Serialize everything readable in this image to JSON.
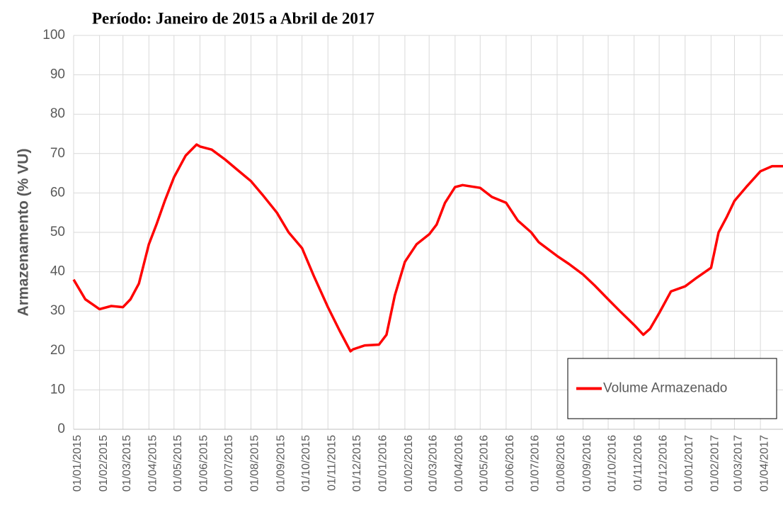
{
  "chart_data": {
    "type": "line",
    "title": "Período: Janeiro de 2015 a Abril de 2017",
    "y_label": "Armazenamento (% VU)",
    "legend": "lower right",
    "grid": true,
    "ylim": [
      0,
      100
    ],
    "yticks": [
      0,
      10,
      20,
      30,
      40,
      50,
      60,
      70,
      80,
      90,
      100
    ],
    "xlim": [
      "01/01/2015",
      "28/04/2017"
    ],
    "xticks": [
      "01/01/2015",
      "01/02/2015",
      "01/03/2015",
      "01/04/2015",
      "01/05/2015",
      "01/06/2015",
      "01/07/2015",
      "01/08/2015",
      "01/09/2015",
      "01/10/2015",
      "01/11/2015",
      "01/12/2015",
      "01/01/2016",
      "01/02/2016",
      "01/03/2016",
      "01/04/2016",
      "01/05/2016",
      "01/06/2016",
      "01/07/2016",
      "01/08/2016",
      "01/09/2016",
      "01/10/2016",
      "01/11/2016",
      "01/12/2016",
      "01/01/2017",
      "01/02/2017",
      "01/03/2017",
      "01/04/2017"
    ],
    "x": [
      "01/01/2015",
      "15/01/2015",
      "01/02/2015",
      "15/02/2015",
      "01/03/2015",
      "10/03/2015",
      "20/03/2015",
      "01/04/2015",
      "10/04/2015",
      "20/04/2015",
      "01/05/2015",
      "15/05/2015",
      "28/05/2015",
      "01/06/2015",
      "15/06/2015",
      "01/07/2015",
      "15/07/2015",
      "01/08/2015",
      "15/08/2015",
      "01/09/2015",
      "15/09/2015",
      "01/10/2015",
      "15/10/2015",
      "01/11/2015",
      "15/11/2015",
      "28/11/2015",
      "01/12/2015",
      "15/12/2015",
      "01/01/2016",
      "10/01/2016",
      "20/01/2016",
      "01/02/2016",
      "15/02/2016",
      "01/03/2016",
      "10/03/2016",
      "20/03/2016",
      "01/04/2016",
      "10/04/2016",
      "01/05/2016",
      "15/05/2016",
      "01/06/2016",
      "15/06/2016",
      "01/07/2016",
      "10/07/2016",
      "01/08/2016",
      "15/08/2016",
      "01/09/2016",
      "15/09/2016",
      "01/10/2016",
      "15/10/2016",
      "01/11/2016",
      "12/11/2016",
      "20/11/2016",
      "01/12/2016",
      "15/12/2016",
      "01/01/2017",
      "15/01/2017",
      "01/02/2017",
      "10/02/2017",
      "20/02/2017",
      "01/03/2017",
      "15/03/2017",
      "01/04/2017",
      "15/04/2017",
      "28/04/2017"
    ],
    "series": [
      {
        "name": "Volume Armazenado",
        "color": "#ff0000",
        "values": [
          38,
          33,
          30.5,
          31.3,
          31,
          33,
          37,
          47,
          52,
          58,
          64,
          69.5,
          72.3,
          71.8,
          71,
          68.5,
          66,
          63,
          59.5,
          55,
          50,
          46,
          39,
          31,
          25,
          19.8,
          20.3,
          21.3,
          21.5,
          24,
          34,
          42.5,
          47,
          49.5,
          52,
          57.5,
          61.5,
          62,
          61.3,
          59,
          57.5,
          53,
          50,
          47.5,
          44,
          42,
          39.3,
          36.5,
          33,
          30,
          26.5,
          24,
          25.5,
          29.5,
          35,
          36.3,
          38.5,
          41,
          50,
          54,
          58,
          61.5,
          65.5,
          66.8,
          66.8
        ]
      }
    ]
  }
}
